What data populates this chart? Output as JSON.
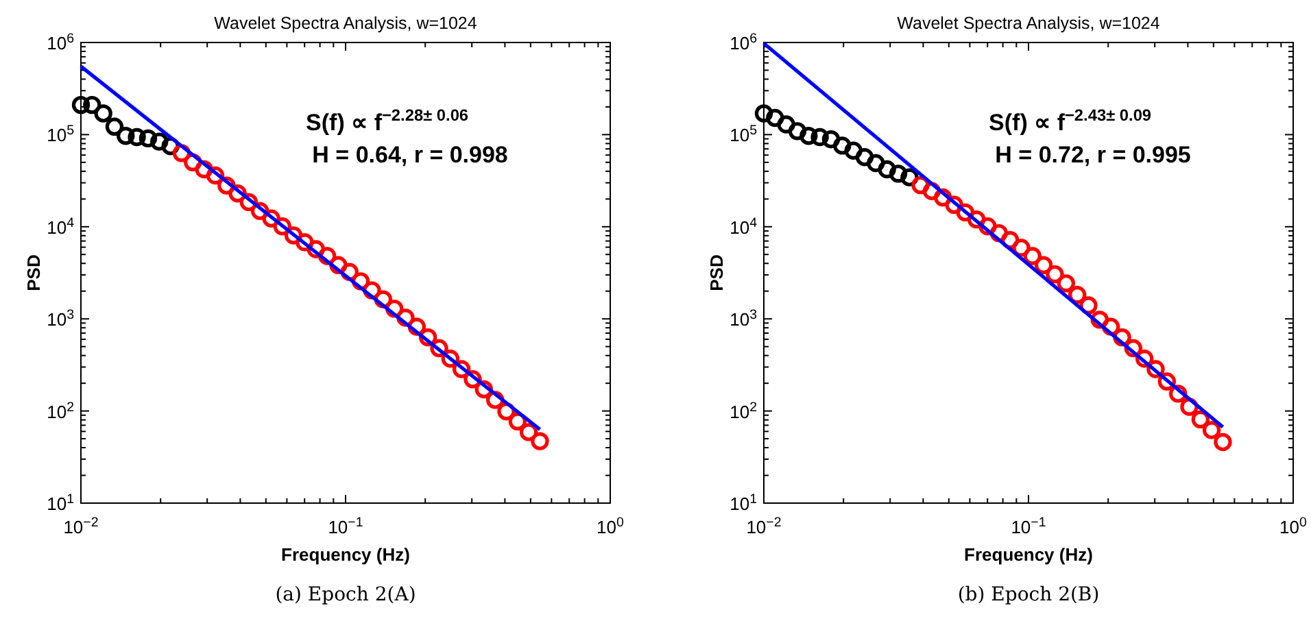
{
  "chart_data": [
    {
      "type": "scatter",
      "title": "Wavelet Spectra Analysis, w=1024",
      "xlabel": "Frequency (Hz)",
      "ylabel": "PSD",
      "log": "xy",
      "marker": "circle",
      "xlim": [
        0.01,
        1
      ],
      "ylim": [
        10,
        1000000
      ],
      "xticks": [
        {
          "value": 0.01,
          "label": "10$^{−2}$"
        },
        {
          "value": 0.02,
          "label": null
        },
        {
          "value": 0.03,
          "label": null
        },
        {
          "value": 0.04,
          "label": null
        },
        {
          "value": 0.05,
          "label": null
        },
        {
          "value": 0.06,
          "label": null
        },
        {
          "value": 0.07,
          "label": null
        },
        {
          "value": 0.08,
          "label": null
        },
        {
          "value": 0.09,
          "label": null
        },
        {
          "value": 0.1,
          "label": "10$^{−1}$"
        },
        {
          "value": 0.2,
          "label": null
        },
        {
          "value": 0.3,
          "label": null
        },
        {
          "value": 0.4,
          "label": null
        },
        {
          "value": 0.5,
          "label": null
        },
        {
          "value": 0.6,
          "label": null
        },
        {
          "value": 0.7,
          "label": null
        },
        {
          "value": 0.8,
          "label": null
        },
        {
          "value": 0.9,
          "label": null
        },
        {
          "value": 1,
          "label": "10$^{0}$"
        }
      ],
      "yticks": [
        {
          "value": 10,
          "label": "10$^{1}$"
        },
        {
          "value": 20,
          "label": null
        },
        {
          "value": 30,
          "label": null
        },
        {
          "value": 40,
          "label": null
        },
        {
          "value": 50,
          "label": null
        },
        {
          "value": 60,
          "label": null
        },
        {
          "value": 70,
          "label": null
        },
        {
          "value": 80,
          "label": null
        },
        {
          "value": 90,
          "label": null
        },
        {
          "value": 100,
          "label": "10$^{2}$"
        },
        {
          "value": 200,
          "label": null
        },
        {
          "value": 300,
          "label": null
        },
        {
          "value": 400,
          "label": null
        },
        {
          "value": 500,
          "label": null
        },
        {
          "value": 600,
          "label": null
        },
        {
          "value": 700,
          "label": null
        },
        {
          "value": 800,
          "label": null
        },
        {
          "value": 900,
          "label": null
        },
        {
          "value": 1000,
          "label": "10$^{3}$"
        },
        {
          "value": 2000,
          "label": null
        },
        {
          "value": 3000,
          "label": null
        },
        {
          "value": 4000,
          "label": null
        },
        {
          "value": 5000,
          "label": null
        },
        {
          "value": 6000,
          "label": null
        },
        {
          "value": 7000,
          "label": null
        },
        {
          "value": 8000,
          "label": null
        },
        {
          "value": 9000,
          "label": null
        },
        {
          "value": 10000,
          "label": "10$^{4}$"
        },
        {
          "value": 20000,
          "label": null
        },
        {
          "value": 30000,
          "label": null
        },
        {
          "value": 40000,
          "label": null
        },
        {
          "value": 50000,
          "label": null
        },
        {
          "value": 60000,
          "label": null
        },
        {
          "value": 70000,
          "label": null
        },
        {
          "value": 80000,
          "label": null
        },
        {
          "value": 90000,
          "label": null
        },
        {
          "value": 100000,
          "label": "10$^{5}$"
        },
        {
          "value": 200000,
          "label": null
        },
        {
          "value": 300000,
          "label": null
        },
        {
          "value": 400000,
          "label": null
        },
        {
          "value": 500000,
          "label": null
        },
        {
          "value": 600000,
          "label": null
        },
        {
          "value": 700000,
          "label": null
        },
        {
          "value": 800000,
          "label": null
        },
        {
          "value": 900000,
          "label": null
        },
        {
          "value": 1000000,
          "label": "10$^{6}$"
        }
      ],
      "series": [
        {
          "color": "#000000",
          "x": [
            0.01,
            0.01102,
            0.01215,
            0.01339,
            0.01476,
            0.01627,
            0.01794,
            0.01977,
            0.0218
          ],
          "values": [
            210000,
            210000,
            170000,
            122000,
            97000,
            94000,
            91000,
            84000,
            75000
          ]
        },
        {
          "color": "#ff0000",
          "x": [
            0.02403,
            0.02649,
            0.0292,
            0.0322,
            0.0355,
            0.0391,
            0.0431,
            0.0475,
            0.0524,
            0.0577,
            0.0636,
            0.0701,
            0.0773,
            0.0852,
            0.0939,
            0.1035,
            0.1141,
            0.1258,
            0.1387,
            0.1529,
            0.1685,
            0.1858,
            0.2048,
            0.2258,
            0.2489,
            0.2743,
            0.3024,
            0.3334,
            0.3675,
            0.4051,
            0.4466,
            0.492,
            0.5424
          ],
          "values": [
            63000,
            50000,
            42000,
            36000,
            28000,
            23000,
            18500,
            14800,
            12300,
            10100,
            8050,
            6780,
            5710,
            4810,
            3830,
            3230,
            2560,
            2040,
            1630,
            1290,
            1030,
            820,
            630,
            480,
            370,
            285,
            221,
            172,
            132,
            99,
            77,
            59,
            47
          ]
        },
        {
          "type": "line",
          "color": "#0000ff",
          "marker": "none",
          "x": [
            0.01,
            0.5424
          ],
          "values": [
            550000,
            63
          ]
        }
      ],
      "annotations": [
        "S(f) ∝ f$^{−2.28± 0.06}$",
        "H = 0.64, r = 0.998",
        "(a) Epoch 2(A)"
      ]
    },
    {
      "type": "scatter",
      "title": "Wavelet Spectra Analysis, w=1024",
      "xlabel": "Frequency (Hz)",
      "ylabel": "PSD",
      "log": "xy",
      "marker": "circle",
      "xlim": [
        0.01,
        1
      ],
      "ylim": [
        10,
        1000000
      ],
      "xticks": [
        {
          "value": 0.01,
          "label": "10$^{−2}$"
        },
        {
          "value": 0.02,
          "label": null
        },
        {
          "value": 0.03,
          "label": null
        },
        {
          "value": 0.04,
          "label": null
        },
        {
          "value": 0.05,
          "label": null
        },
        {
          "value": 0.06,
          "label": null
        },
        {
          "value": 0.07,
          "label": null
        },
        {
          "value": 0.08,
          "label": null
        },
        {
          "value": 0.09,
          "label": null
        },
        {
          "value": 0.1,
          "label": "10$^{−1}$"
        },
        {
          "value": 0.2,
          "label": null
        },
        {
          "value": 0.3,
          "label": null
        },
        {
          "value": 0.4,
          "label": null
        },
        {
          "value": 0.5,
          "label": null
        },
        {
          "value": 0.6,
          "label": null
        },
        {
          "value": 0.7,
          "label": null
        },
        {
          "value": 0.8,
          "label": null
        },
        {
          "value": 0.9,
          "label": null
        },
        {
          "value": 1,
          "label": "10$^{0}$"
        }
      ],
      "yticks": [
        {
          "value": 10,
          "label": "10$^{1}$"
        },
        {
          "value": 20,
          "label": null
        },
        {
          "value": 30,
          "label": null
        },
        {
          "value": 40,
          "label": null
        },
        {
          "value": 50,
          "label": null
        },
        {
          "value": 60,
          "label": null
        },
        {
          "value": 70,
          "label": null
        },
        {
          "value": 80,
          "label": null
        },
        {
          "value": 90,
          "label": null
        },
        {
          "value": 100,
          "label": "10$^{2}$"
        },
        {
          "value": 200,
          "label": null
        },
        {
          "value": 300,
          "label": null
        },
        {
          "value": 400,
          "label": null
        },
        {
          "value": 500,
          "label": null
        },
        {
          "value": 600,
          "label": null
        },
        {
          "value": 700,
          "label": null
        },
        {
          "value": 800,
          "label": null
        },
        {
          "value": 900,
          "label": null
        },
        {
          "value": 1000,
          "label": "10$^{3}$"
        },
        {
          "value": 2000,
          "label": null
        },
        {
          "value": 3000,
          "label": null
        },
        {
          "value": 4000,
          "label": null
        },
        {
          "value": 5000,
          "label": null
        },
        {
          "value": 6000,
          "label": null
        },
        {
          "value": 7000,
          "label": null
        },
        {
          "value": 8000,
          "label": null
        },
        {
          "value": 9000,
          "label": null
        },
        {
          "value": 10000,
          "label": "10$^{4}$"
        },
        {
          "value": 20000,
          "label": null
        },
        {
          "value": 30000,
          "label": null
        },
        {
          "value": 40000,
          "label": null
        },
        {
          "value": 50000,
          "label": null
        },
        {
          "value": 60000,
          "label": null
        },
        {
          "value": 70000,
          "label": null
        },
        {
          "value": 80000,
          "label": null
        },
        {
          "value": 90000,
          "label": null
        },
        {
          "value": 100000,
          "label": "10$^{5}$"
        },
        {
          "value": 200000,
          "label": null
        },
        {
          "value": 300000,
          "label": null
        },
        {
          "value": 400000,
          "label": null
        },
        {
          "value": 500000,
          "label": null
        },
        {
          "value": 600000,
          "label": null
        },
        {
          "value": 700000,
          "label": null
        },
        {
          "value": 800000,
          "label": null
        },
        {
          "value": 900000,
          "label": null
        },
        {
          "value": 1000000,
          "label": "10$^{6}$"
        }
      ],
      "series": [
        {
          "color": "#000000",
          "x": [
            0.01,
            0.01102,
            0.01215,
            0.01339,
            0.01476,
            0.01627,
            0.01794,
            0.01977,
            0.0218,
            0.02403,
            0.02649,
            0.0292,
            0.0322,
            0.0355
          ],
          "values": [
            170000,
            152000,
            129000,
            109000,
            97000,
            94000,
            89000,
            76000,
            67000,
            57000,
            49000,
            42000,
            37700,
            34400
          ]
        },
        {
          "color": "#ff0000",
          "x": [
            0.0391,
            0.0431,
            0.0475,
            0.0524,
            0.0577,
            0.0636,
            0.0701,
            0.0773,
            0.0852,
            0.0939,
            0.1035,
            0.1141,
            0.1258,
            0.1387,
            0.1529,
            0.1685,
            0.1858,
            0.2048,
            0.2258,
            0.2489,
            0.2743,
            0.3024,
            0.3334,
            0.3675,
            0.4051,
            0.4466,
            0.492,
            0.5424
          ],
          "values": [
            28300,
            24400,
            20800,
            17300,
            14300,
            12000,
            10100,
            8530,
            7180,
            5910,
            4810,
            3830,
            3050,
            2430,
            1820,
            1400,
            980,
            820,
            630,
            480,
            370,
            285,
            209,
            154,
            111,
            81,
            62,
            46
          ]
        },
        {
          "type": "line",
          "color": "#0000ff",
          "marker": "none",
          "x": [
            0.01,
            0.5424
          ],
          "values": [
            980000,
            67
          ]
        }
      ],
      "annotations": [
        "S(f) ∝ f$^{−2.43± 0.09}$",
        "H = 0.72, r = 0.995",
        "(b) Epoch 2(B)"
      ]
    }
  ]
}
